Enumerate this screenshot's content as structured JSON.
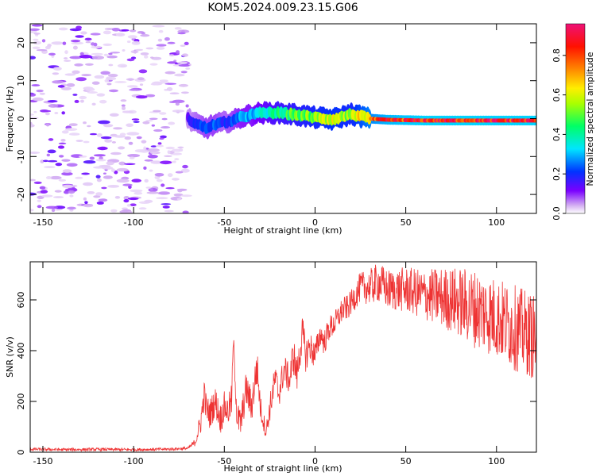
{
  "chart_data": [
    {
      "type": "heatmap",
      "title": "KOM5.2024.009.23.15.G06",
      "xlabel": "Height of straight line (km)",
      "ylabel": "Frequency (Hz)",
      "xlim": [
        -157,
        122
      ],
      "ylim": [
        -25,
        25
      ],
      "xticks": [
        -150,
        -100,
        -50,
        0,
        50,
        100
      ],
      "xtick_labels": [
        "-150",
        "-100",
        "-50",
        "0",
        "50",
        "100"
      ],
      "yticks": [
        -20,
        -10,
        0,
        10,
        20
      ],
      "ytick_labels": [
        "-20",
        "-10",
        "0",
        "10",
        "20"
      ],
      "colorbar": {
        "label": "Normalized spectral amplitude",
        "range": [
          0,
          0.96
        ],
        "ticks": [
          0.0,
          0.2,
          0.4,
          0.6,
          0.8
        ],
        "tick_labels": [
          "0.0",
          "0.2",
          "0.4",
          "0.6",
          "0.8"
        ],
        "colormap": "rainbow (white, purple, blue, cyan, green, yellow, red, magenta)"
      },
      "noise_region": {
        "x": [
          -157,
          -70
        ],
        "y": [
          -25,
          25
        ],
        "amplitude": [
          0.02,
          0.15
        ]
      },
      "signal_ridge": {
        "x": [
          -70,
          -65,
          -60,
          -55,
          -50,
          -45,
          -40,
          -35,
          -30,
          -20,
          -10,
          0,
          10,
          20,
          30,
          40,
          60,
          80,
          100,
          122
        ],
        "freq": [
          0.0,
          -1.5,
          -2.5,
          -1.5,
          -1.0,
          -0.5,
          0.5,
          1.0,
          1.5,
          1.5,
          1.0,
          0.3,
          -0.2,
          1.2,
          0.0,
          -0.3,
          -0.5,
          -0.5,
          -0.5,
          -0.5
        ],
        "amplitude": [
          0.15,
          0.2,
          0.25,
          0.25,
          0.2,
          0.25,
          0.3,
          0.3,
          0.35,
          0.45,
          0.5,
          0.55,
          0.6,
          0.55,
          0.75,
          0.85,
          0.9,
          0.9,
          0.9,
          0.9
        ]
      },
      "grid": false
    },
    {
      "type": "line",
      "xlabel": "Height of straight line (km)",
      "ylabel": "SNR (v/v)",
      "xlim": [
        -157,
        122
      ],
      "ylim": [
        0,
        750
      ],
      "xticks": [
        -150,
        -100,
        -50,
        0,
        50,
        100
      ],
      "xtick_labels": [
        "-150",
        "-100",
        "-50",
        "0",
        "50",
        "100"
      ],
      "yticks": [
        0,
        200,
        400,
        600
      ],
      "ytick_labels": [
        "0",
        "200",
        "400",
        "600"
      ],
      "series": [
        {
          "color": "#ee3333",
          "x": [
            -157,
            -140,
            -120,
            -100,
            -80,
            -70,
            -66,
            -63,
            -61,
            -60,
            -58,
            -55,
            -52,
            -50,
            -48,
            -46,
            -45,
            -43,
            -41,
            -38,
            -35,
            -32,
            -30,
            -27,
            -24,
            -22,
            -20,
            -17,
            -14,
            -12,
            -10,
            -7,
            -5,
            -3,
            0,
            3,
            5,
            8,
            10,
            12,
            15,
            18,
            20,
            25,
            30,
            35,
            40,
            50,
            60,
            70,
            80,
            90,
            100,
            110,
            122
          ],
          "y": [
            12,
            10,
            11,
            10,
            12,
            15,
            40,
            120,
            230,
            170,
            150,
            200,
            130,
            180,
            160,
            200,
            440,
            140,
            110,
            250,
            180,
            340,
            170,
            80,
            210,
            290,
            230,
            330,
            280,
            390,
            300,
            470,
            380,
            420,
            380,
            470,
            430,
            490,
            500,
            520,
            560,
            570,
            590,
            650,
            650,
            670,
            640,
            640,
            620,
            610,
            590,
            560,
            530,
            490,
            450
          ],
          "spread": [
            6,
            6,
            6,
            6,
            6,
            6,
            15,
            50,
            60,
            60,
            60,
            60,
            60,
            60,
            60,
            70,
            30,
            70,
            60,
            70,
            70,
            80,
            50,
            30,
            60,
            60,
            60,
            60,
            60,
            80,
            70,
            70,
            70,
            60,
            60,
            50,
            50,
            50,
            50,
            50,
            50,
            50,
            50,
            60,
            70,
            80,
            80,
            90,
            100,
            120,
            140,
            160,
            160,
            170,
            170
          ]
        }
      ],
      "grid": false
    }
  ]
}
